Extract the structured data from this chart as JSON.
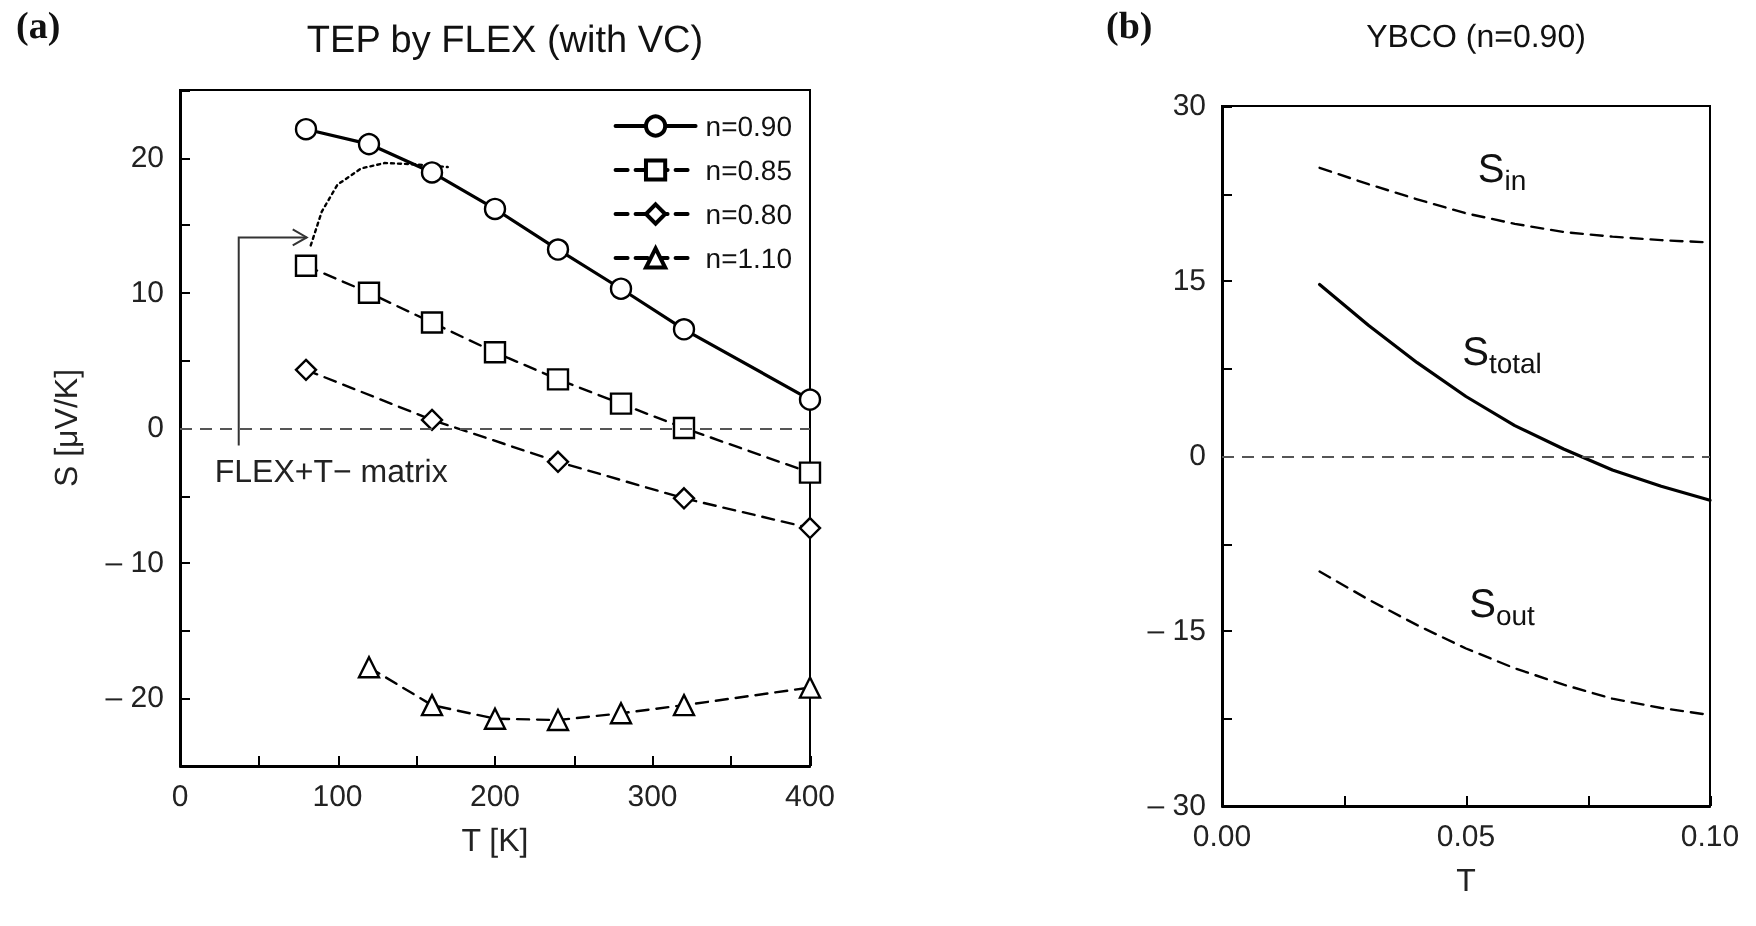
{
  "chart_data": [
    {
      "type": "line",
      "title": "TEP by FLEX (with VC)",
      "xlabel": "T [K]",
      "ylabel": "S [μV/K]",
      "xlim": [
        0,
        400
      ],
      "ylim": [
        -25,
        25
      ],
      "xticks": [
        0,
        {
          "value": 50,
          "label": null
        },
        100,
        {
          "value": 150,
          "label": null
        },
        200,
        {
          "value": 250,
          "label": null
        },
        300,
        {
          "value": 350,
          "label": null
        },
        400
      ],
      "yticks": [
        {
          "value": -25,
          "label": null
        },
        {
          "value": -20,
          "label": "– 20"
        },
        {
          "value": -15,
          "label": null
        },
        {
          "value": -10,
          "label": "– 10"
        },
        {
          "value": -5,
          "label": null
        },
        0,
        {
          "value": 5,
          "label": null
        },
        10,
        {
          "value": 15,
          "label": null
        },
        20,
        {
          "value": 25,
          "label": null
        }
      ],
      "series": [
        {
          "name": "n=0.90",
          "color": "#000000",
          "marker": "circle",
          "line_style": "solid",
          "x": [
            80,
            120,
            160,
            200,
            240,
            280,
            320,
            400
          ],
          "values": [
            22.1,
            21.0,
            18.9,
            16.2,
            13.2,
            10.3,
            7.3,
            2.1
          ]
        },
        {
          "name": "n=0.85",
          "color": "#000000",
          "marker": "square",
          "line_style": "dashed",
          "x": [
            80,
            120,
            160,
            200,
            240,
            280,
            320,
            400
          ],
          "values": [
            12.0,
            10.0,
            7.8,
            5.6,
            3.6,
            1.8,
            0.0,
            -3.3
          ]
        },
        {
          "name": "n=0.80",
          "color": "#000000",
          "marker": "diamond",
          "line_style": "dashed",
          "x": [
            80,
            160,
            240,
            320,
            400
          ],
          "values": [
            4.3,
            0.6,
            -2.5,
            -5.2,
            -7.4
          ]
        },
        {
          "name": "n=1.10",
          "color": "#000000",
          "marker": "triangle",
          "line_style": "dashed",
          "x": [
            120,
            160,
            200,
            240,
            280,
            320,
            400
          ],
          "values": [
            -17.7,
            -20.5,
            -21.5,
            -21.6,
            -21.1,
            -20.5,
            -19.2
          ]
        },
        {
          "color": "#000000",
          "marker": "none",
          "line_style": "dotted",
          "x": [
            83,
            90,
            100,
            115,
            130,
            150,
            170
          ],
          "values": [
            13.5,
            16.0,
            18.0,
            19.2,
            19.6,
            19.5,
            19.3
          ]
        }
      ],
      "ref_lines": [
        {
          "axis": "y",
          "value": 0,
          "color": "#555555",
          "line_style": "dashed"
        }
      ],
      "legend": "top right",
      "grid": false,
      "annotations": [
        "(a)",
        {
          "text": "FLEX+T− matrix",
          "x": 83,
          "y": 13.5
        }
      ]
    },
    {
      "type": "line",
      "title": "YBCO (n=0.90)",
      "xlabel": "T",
      "xlim": [
        0,
        0.1
      ],
      "ylim": [
        -30,
        30
      ],
      "xticks": [
        {
          "value": 0,
          "label": "0.00"
        },
        {
          "value": 0.025,
          "label": null
        },
        {
          "value": 0.05,
          "label": "0.05"
        },
        {
          "value": 0.075,
          "label": null
        },
        {
          "value": 0.1,
          "label": "0.10"
        }
      ],
      "yticks": [
        {
          "value": -30,
          "label": "– 30"
        },
        {
          "value": -22.5,
          "label": null
        },
        {
          "value": -15,
          "label": "– 15"
        },
        {
          "value": -7.5,
          "label": null
        },
        0,
        {
          "value": 7.5,
          "label": null
        },
        15,
        {
          "value": 22.5,
          "label": null
        },
        30
      ],
      "series": [
        {
          "name": "S$_{in}$",
          "color": "#000000",
          "line_style": "dashed",
          "x": [
            0.02,
            0.03,
            0.04,
            0.05,
            0.06,
            0.07,
            0.08,
            0.09,
            0.1
          ],
          "values": [
            24.7,
            23.3,
            22.0,
            20.8,
            19.9,
            19.2,
            18.8,
            18.5,
            18.3
          ]
        },
        {
          "name": "S$_{total}$",
          "color": "#000000",
          "line_style": "solid",
          "x": [
            0.02,
            0.03,
            0.04,
            0.05,
            0.06,
            0.07,
            0.08,
            0.09,
            0.1
          ],
          "values": [
            14.7,
            11.2,
            8.0,
            5.1,
            2.6,
            0.6,
            -1.2,
            -2.6,
            -3.8
          ]
        },
        {
          "name": "S$_{out}$",
          "color": "#000000",
          "line_style": "dashed",
          "x": [
            0.02,
            0.03,
            0.04,
            0.05,
            0.06,
            0.07,
            0.08,
            0.09,
            0.1
          ],
          "values": [
            -9.9,
            -12.3,
            -14.5,
            -16.5,
            -18.2,
            -19.6,
            -20.8,
            -21.6,
            -22.2
          ]
        }
      ],
      "ref_lines": [
        {
          "axis": "y",
          "value": 0,
          "color": "#555555",
          "line_style": "dashed"
        }
      ],
      "legend": false,
      "grid": false,
      "annotations": [
        "(b)"
      ]
    }
  ]
}
